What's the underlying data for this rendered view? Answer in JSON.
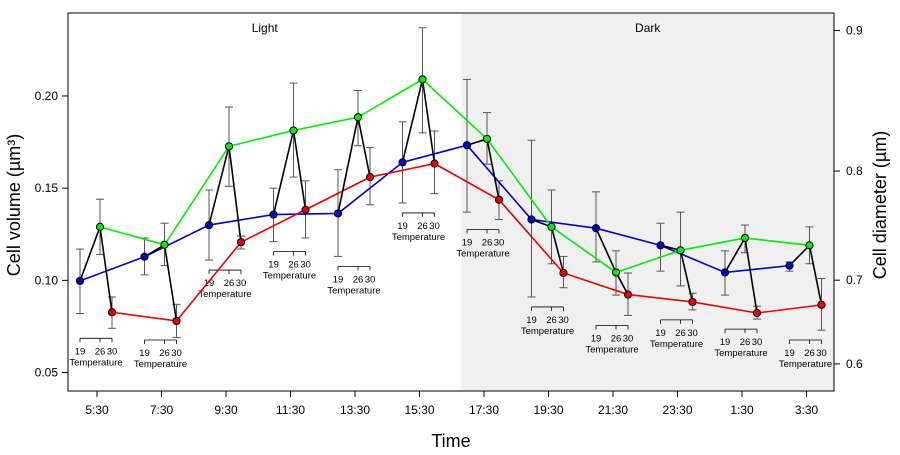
{
  "chart_data": {
    "type": "line",
    "title": "",
    "xlabel": "Time",
    "ylabel": "Cell volume (µm³)",
    "ylabel_right": "Cell diameter (µm)",
    "ylim": [
      0.04,
      0.245
    ],
    "yticks": [
      0.05,
      0.1,
      0.15,
      0.2
    ],
    "ytick_labels": [
      "0.05",
      "0.10",
      "0.15",
      "0.20"
    ],
    "y2_ticks": [
      {
        "label": "0.6",
        "volume": 0.0547
      },
      {
        "label": "0.7",
        "volume": 0.1001
      },
      {
        "label": "0.8",
        "volume": 0.1593
      },
      {
        "label": "0.9",
        "volume": 0.2355
      }
    ],
    "categories": [
      "5:30",
      "7:30",
      "9:30",
      "11:30",
      "13:30",
      "15:30",
      "17:30",
      "19:30",
      "21:30",
      "23:30",
      "1:30",
      "3:30"
    ],
    "regions": [
      {
        "label": "Light",
        "from_index": 0,
        "to_index": 5.65,
        "shade": "#ffffff"
      },
      {
        "label": "Dark",
        "from_index": 5.65,
        "to_index": 11.5,
        "shade": "#f0f0f0"
      }
    ],
    "colors": {
      "19": "#0000cc",
      "26": "#00ee00",
      "30": "#ee0000",
      "connector": "#000000",
      "errorbar": "#555555"
    },
    "temperature_label": "Temperature",
    "temperature_ticks": [
      "19",
      "26",
      "30"
    ],
    "series": [
      {
        "name": "19",
        "values": [
          0.0997,
          0.1128,
          0.13,
          0.1357,
          0.1363,
          0.164,
          0.1733,
          0.133,
          0.1283,
          0.119,
          0.1043,
          0.108
        ],
        "err_low": [
          0.082,
          0.103,
          0.111,
          0.121,
          0.113,
          0.142,
          0.137,
          0.091,
          0.11,
          0.105,
          0.092,
          0.105
        ],
        "err_high": [
          0.117,
          0.123,
          0.149,
          0.15,
          0.16,
          0.186,
          0.209,
          0.176,
          0.148,
          0.131,
          0.116,
          0.11
        ]
      },
      {
        "name": "26",
        "values": [
          0.129,
          0.1193,
          0.1727,
          0.1813,
          0.1885,
          0.209,
          0.1767,
          0.129,
          0.1043,
          0.1163,
          0.123,
          0.119
        ],
        "err_low": [
          0.114,
          0.108,
          0.151,
          0.156,
          0.173,
          0.18,
          0.163,
          0.109,
          0.092,
          0.097,
          0.115,
          0.109
        ],
        "err_high": [
          0.144,
          0.131,
          0.194,
          0.207,
          0.203,
          0.237,
          0.191,
          0.149,
          0.116,
          0.137,
          0.13,
          0.129
        ]
      },
      {
        "name": "30",
        "values": [
          0.0827,
          0.078,
          0.1207,
          0.1383,
          0.156,
          0.1633,
          0.1437,
          0.104,
          0.0923,
          0.0883,
          0.0823,
          0.0867
        ],
        "err_low": [
          0.074,
          0.069,
          0.117,
          0.123,
          0.141,
          0.147,
          0.133,
          0.096,
          0.081,
          0.084,
          0.079,
          0.073
        ],
        "err_high": [
          0.091,
          0.087,
          0.124,
          0.154,
          0.172,
          0.181,
          0.154,
          0.113,
          0.104,
          0.093,
          0.086,
          0.101
        ]
      }
    ],
    "grid": false,
    "legend": "none"
  }
}
